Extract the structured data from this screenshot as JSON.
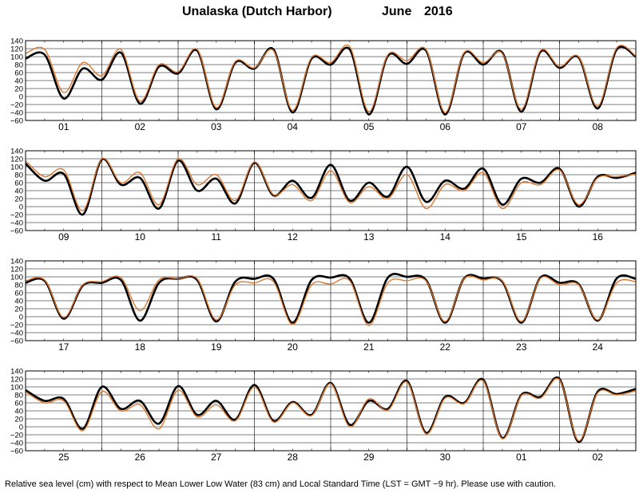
{
  "title": {
    "location": "Unalaska (Dutch Harbor)",
    "month": "June",
    "year": "2016"
  },
  "footer": "Relative sea level (cm) with respect to Mean Lower Low Water (83 cm) and Local Standard Time (LST = GMT −9 hr). Please use with caution.",
  "colors": {
    "predicted": "#000000",
    "observed": "#e07020",
    "grid": "#000000"
  },
  "chart_data": [
    {
      "type": "line",
      "panel": 1,
      "xlabel": "",
      "ylabel": "",
      "ylim": [
        -60,
        140
      ],
      "yticks": [
        "140",
        "120",
        "100",
        "80",
        "60",
        "40",
        "20",
        "0",
        "−20",
        "−40",
        "−60"
      ],
      "days": [
        "01",
        "02",
        "03",
        "04",
        "05",
        "06",
        "07",
        "08"
      ],
      "grid": true,
      "series": [
        {
          "key": "predicted",
          "x": [
            0,
            0.5,
            1,
            1.5,
            2,
            2.5,
            3,
            3.5,
            4,
            4.5,
            5,
            5.5,
            6,
            6.5,
            7,
            7.5,
            8,
            8.5,
            9,
            9.5,
            10,
            10.5,
            11,
            11.5,
            12,
            12.5,
            13,
            13.5,
            14,
            14.5,
            15,
            15.5,
            16
          ],
          "y": [
            95,
            105,
            -5,
            70,
            42,
            110,
            -18,
            75,
            58,
            115,
            -32,
            85,
            70,
            118,
            -40,
            95,
            80,
            118,
            -45,
            102,
            82,
            115,
            -45,
            108,
            80,
            110,
            -38,
            112,
            72,
            98,
            -30,
            118,
            100
          ]
        },
        {
          "key": "observed",
          "x": [
            0,
            0.5,
            1,
            1.5,
            2,
            2.5,
            3,
            3.5,
            4,
            4.5,
            5,
            5.5,
            6,
            6.5,
            7,
            7.5,
            8,
            8.5,
            9,
            9.5,
            10,
            10.5,
            11,
            11.5,
            12,
            12.5,
            13,
            13.5,
            14,
            14.5,
            15,
            15.5,
            16
          ],
          "y": [
            108,
            118,
            10,
            85,
            52,
            118,
            -12,
            80,
            62,
            118,
            -28,
            88,
            72,
            115,
            -35,
            98,
            85,
            125,
            -38,
            105,
            90,
            118,
            -40,
            110,
            85,
            108,
            -32,
            115,
            75,
            100,
            -25,
            122,
            102
          ]
        }
      ]
    },
    {
      "type": "line",
      "panel": 2,
      "xlabel": "",
      "ylabel": "",
      "ylim": [
        -60,
        140
      ],
      "yticks": [
        "140",
        "120",
        "100",
        "80",
        "60",
        "40",
        "20",
        "0",
        "−20",
        "−40",
        "−60"
      ],
      "days": [
        "09",
        "10",
        "11",
        "12",
        "13",
        "14",
        "15",
        "16"
      ],
      "grid": true,
      "series": [
        {
          "key": "predicted",
          "x": [
            0,
            0.5,
            1,
            1.5,
            2,
            2.5,
            3,
            3.5,
            4,
            4.5,
            5,
            5.5,
            6,
            6.5,
            7,
            7.5,
            8,
            8.5,
            9,
            9.5,
            10,
            10.5,
            11,
            11.5,
            12,
            12.5,
            13,
            13.5,
            14,
            14.5,
            15,
            15.5,
            16
          ],
          "y": [
            108,
            65,
            82,
            -20,
            118,
            55,
            72,
            -5,
            115,
            40,
            70,
            8,
            110,
            28,
            65,
            22,
            105,
            15,
            60,
            25,
            100,
            12,
            65,
            45,
            95,
            5,
            70,
            60,
            95,
            0,
            75,
            72,
            85
          ]
        },
        {
          "key": "observed",
          "x": [
            0,
            0.5,
            1,
            1.5,
            2,
            2.5,
            3,
            3.5,
            4,
            4.5,
            5,
            5.5,
            6,
            6.5,
            7,
            7.5,
            8,
            8.5,
            9,
            9.5,
            10,
            10.5,
            11,
            11.5,
            12,
            12.5,
            13,
            13.5,
            14,
            14.5,
            15,
            15.5,
            16
          ],
          "y": [
            115,
            75,
            92,
            -10,
            120,
            60,
            85,
            5,
            120,
            55,
            80,
            15,
            112,
            30,
            55,
            15,
            90,
            10,
            50,
            20,
            80,
            -5,
            55,
            40,
            85,
            -5,
            60,
            55,
            92,
            5,
            72,
            75,
            82
          ]
        }
      ]
    },
    {
      "type": "line",
      "panel": 3,
      "xlabel": "",
      "ylabel": "",
      "ylim": [
        -60,
        140
      ],
      "yticks": [
        "140",
        "120",
        "100",
        "80",
        "60",
        "40",
        "20",
        "0",
        "−20",
        "−40",
        "−60"
      ],
      "days": [
        "17",
        "18",
        "19",
        "20",
        "21",
        "22",
        "23",
        "24"
      ],
      "grid": true,
      "series": [
        {
          "key": "predicted",
          "x": [
            0,
            0.5,
            1,
            1.5,
            2,
            2.5,
            3,
            3.5,
            4,
            4.5,
            5,
            5.5,
            6,
            6.5,
            7,
            7.5,
            8,
            8.5,
            9,
            9.5,
            10,
            10.5,
            11,
            11.5,
            12,
            12.5,
            13,
            13.5,
            14,
            14.5,
            15,
            15.5,
            16
          ],
          "y": [
            85,
            90,
            -5,
            78,
            85,
            92,
            -10,
            85,
            95,
            92,
            -12,
            88,
            95,
            95,
            -15,
            92,
            98,
            95,
            -15,
            98,
            100,
            92,
            -15,
            96,
            96,
            88,
            -15,
            98,
            85,
            82,
            -10,
            96,
            95
          ]
        },
        {
          "key": "observed",
          "x": [
            0,
            0.5,
            1,
            1.5,
            2,
            2.5,
            3,
            3.5,
            4,
            4.5,
            5,
            5.5,
            6,
            6.5,
            7,
            7.5,
            8,
            8.5,
            9,
            9.5,
            10,
            10.5,
            11,
            11.5,
            12,
            12.5,
            13,
            13.5,
            14,
            14.5,
            15,
            15.5,
            16
          ],
          "y": [
            90,
            92,
            -2,
            80,
            88,
            98,
            15,
            92,
            95,
            95,
            -8,
            80,
            85,
            88,
            -20,
            80,
            82,
            90,
            -22,
            85,
            90,
            90,
            -12,
            95,
            92,
            90,
            -12,
            96,
            80,
            80,
            -8,
            85,
            88
          ]
        }
      ]
    },
    {
      "type": "line",
      "panel": 4,
      "xlabel": "",
      "ylabel": "",
      "ylim": [
        -60,
        140
      ],
      "yticks": [
        "140",
        "120",
        "100",
        "80",
        "60",
        "40",
        "20",
        "0",
        "−20",
        "−40",
        "−60"
      ],
      "days": [
        "25",
        "26",
        "27",
        "28",
        "29",
        "30",
        "01",
        "02"
      ],
      "grid": true,
      "series": [
        {
          "key": "predicted",
          "x": [
            0,
            0.5,
            1,
            1.5,
            2,
            2.5,
            3,
            3.5,
            4,
            4.5,
            5,
            5.5,
            6,
            6.5,
            7,
            7.5,
            8,
            8.5,
            9,
            9.5,
            10,
            10.5,
            11,
            11.5,
            12,
            12.5,
            13,
            13.5,
            14,
            14.5,
            15,
            15.5,
            16
          ],
          "y": [
            92,
            65,
            70,
            -5,
            100,
            45,
            65,
            8,
            102,
            30,
            65,
            18,
            105,
            15,
            62,
            30,
            110,
            5,
            65,
            45,
            115,
            -15,
            75,
            60,
            118,
            -28,
            80,
            75,
            120,
            -38,
            88,
            82,
            95
          ]
        },
        {
          "key": "observed",
          "x": [
            0,
            0.5,
            1,
            1.5,
            2,
            2.5,
            3,
            3.5,
            4,
            4.5,
            5,
            5.5,
            6,
            6.5,
            7,
            7.5,
            8,
            8.5,
            9,
            9.5,
            10,
            10.5,
            11,
            11.5,
            12,
            12.5,
            13,
            13.5,
            14,
            14.5,
            15,
            15.5,
            16
          ],
          "y": [
            88,
            60,
            65,
            -10,
            88,
            40,
            55,
            -5,
            92,
            25,
            55,
            15,
            100,
            12,
            60,
            28,
            108,
            0,
            70,
            42,
            112,
            -18,
            72,
            58,
            115,
            -30,
            78,
            72,
            118,
            -35,
            85,
            80,
            90
          ]
        }
      ]
    }
  ]
}
